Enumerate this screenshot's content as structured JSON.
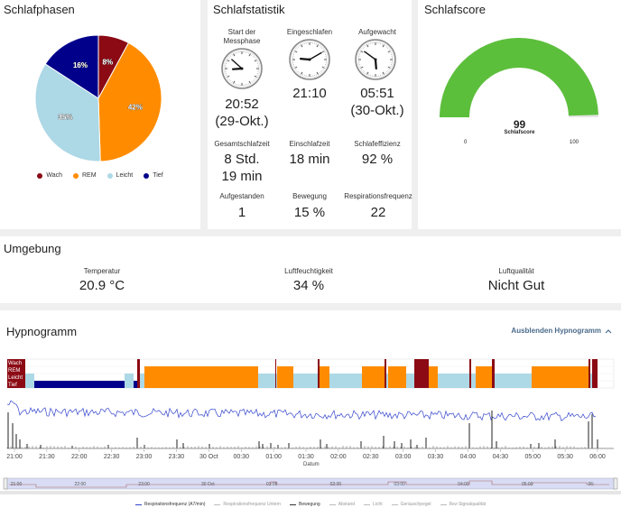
{
  "sleep_phases": {
    "title": "Schlafphasen",
    "chart_data": {
      "type": "pie",
      "labels": [
        "Wach",
        "REM",
        "Leicht",
        "Tief"
      ],
      "values": [
        8,
        42,
        35,
        16
      ],
      "value_labels": [
        "8%",
        "42%",
        "35%",
        "16%"
      ],
      "colors": [
        "#8b0a14",
        "#ff8c00",
        "#add8e6",
        "#00008b"
      ],
      "legend_placement": "bottom"
    }
  },
  "sleep_stats": {
    "title": "Schlafstatistik",
    "start": {
      "label_line1": "Start der",
      "label_line2": "Messphase",
      "time": "20:52",
      "date": "(29-Okt.)"
    },
    "asleep": {
      "label": "Eingeschlafen",
      "time": "21:10"
    },
    "awake": {
      "label": "Aufgewacht",
      "time": "05:51",
      "date": "(30-Okt.)"
    },
    "total": {
      "label": "Gesamtschlafzeit",
      "line1": "8 Std.",
      "line2": "19 min"
    },
    "latency": {
      "label": "Einschlafzeit",
      "value": "18 min"
    },
    "efficiency": {
      "label": "Schlafeffizienz",
      "value": "92 %"
    },
    "got_up": {
      "label": "Aufgestanden",
      "value": "1"
    },
    "movement": {
      "label": "Bewegung",
      "value": "15 %"
    },
    "respiration": {
      "label": "Respirationsfrequenz",
      "value": "22"
    }
  },
  "sleep_score": {
    "title": "Schlafscore",
    "value": 99,
    "value_text": "99",
    "label": "Schlafscore",
    "min_label": "0",
    "max_label": "100",
    "color": "#5cbf3c"
  },
  "environment": {
    "title": "Umgebung",
    "temperature": {
      "label": "Temperatur",
      "value": "20.9 °C"
    },
    "humidity": {
      "label": "Luftfeuchtigkeit",
      "value": "34 %"
    },
    "air_quality": {
      "label": "Luftqualität",
      "value": "Nicht Gut"
    }
  },
  "hypnogram": {
    "title": "Hypnogramm",
    "toggle_label": "Ausblenden Hypnogramm",
    "toggle_icon": "chevron-up-icon",
    "stage_labels": [
      "Wach",
      "REM",
      "Leicht",
      "Tief"
    ],
    "x_ticks": [
      "21:00",
      "21:30",
      "22:00",
      "22:30",
      "23:00",
      "23:30",
      "30 Oct",
      "00:30",
      "01:00",
      "01:30",
      "02:00",
      "02:30",
      "03:00",
      "03:30",
      "04:00",
      "04:30",
      "05:00",
      "05:30",
      "06:00"
    ],
    "x_label": "Datum",
    "nav_ticks": [
      "21:00",
      "22:00",
      "23:00",
      "30 Oct",
      "01:00",
      "02:00",
      "03:00",
      "04:00",
      "05:00",
      "06:"
    ],
    "legend": [
      {
        "name": "Respirationsfrequenz (A7/min)",
        "color": "#3344cc",
        "active": true
      },
      {
        "name": "Respirationsfrequenz Untern",
        "color": "#bbbbbb",
        "active": false
      },
      {
        "name": "Bewegung",
        "color": "#333333",
        "active": true
      },
      {
        "name": "Abstand",
        "color": "#bbbbbb",
        "active": false
      },
      {
        "name": "Licht",
        "color": "#bbbbbb",
        "active": false
      },
      {
        "name": "Geräuschpegel",
        "color": "#bbbbbb",
        "active": false
      },
      {
        "name": "Rez-Signalqualität",
        "color": "#bbbbbb",
        "active": false
      }
    ]
  }
}
